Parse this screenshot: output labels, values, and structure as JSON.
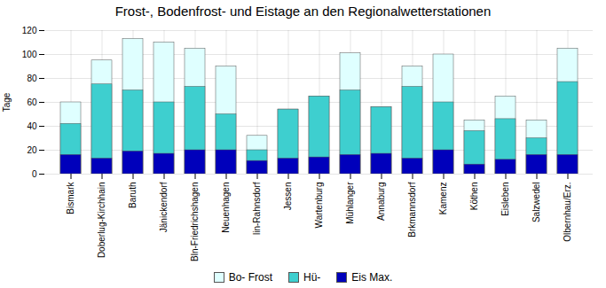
{
  "chart_data": {
    "type": "bar",
    "title": "Frost-, Bodenfrost- und Eistage an den Regionalwetterstationen",
    "ylabel": "Tage",
    "categories": [
      "Bismark",
      "Doberlug-Kirchhain",
      "Baruth",
      "Jänickendorf",
      "Bln-Friedrichshagen",
      "Neuenhagen",
      "lin-Rahnsdorf",
      "Jessen",
      "Wartenburg",
      "Mühlanger",
      "Annaburg",
      "Brkmannsdorf",
      "Kamenz",
      "Köthen",
      "Eisleben",
      "Salzwedel",
      "Olbernhau/Erz."
    ],
    "series": [
      {
        "name": "Bo- Frost",
        "color": "#dfffff",
        "values": [
          60,
          95,
          113,
          110,
          105,
          90,
          32,
          54,
          65,
          101,
          56,
          90,
          100,
          45,
          65,
          45,
          105
        ]
      },
      {
        "name": "Hü-",
        "color": "#3ecfcf",
        "values": [
          42,
          75,
          70,
          60,
          73,
          50,
          20,
          54,
          65,
          70,
          56,
          73,
          60,
          36,
          46,
          30,
          77
        ]
      },
      {
        "name": "Eis Max.",
        "color": "#0000bb",
        "values": [
          16,
          13,
          19,
          17,
          20,
          20,
          11,
          13,
          14,
          16,
          17,
          13,
          20,
          8,
          12,
          16,
          16
        ]
      }
    ],
    "stacked": false,
    "ylim": [
      0,
      120
    ],
    "yticks": [
      0,
      20,
      40,
      60,
      80,
      100,
      120
    ],
    "grid": true,
    "legend": "bottom"
  }
}
